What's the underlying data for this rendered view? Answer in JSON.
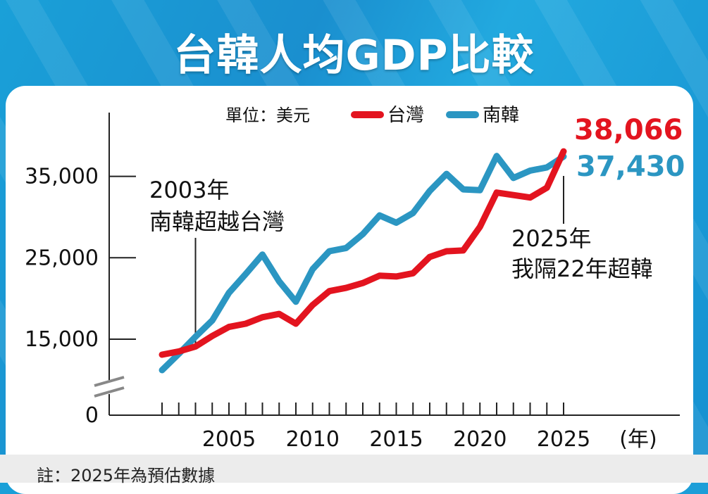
{
  "title": "台韓人均GDP比較",
  "unit_label": "單位：美元",
  "footnote": "註：2025年為預估數據",
  "colors": {
    "taiwan": "#e3141f",
    "korea": "#2b96c2",
    "axis": "#222222",
    "background": "#1a9ad6"
  },
  "annotations": {
    "crossing_year": "2003年",
    "crossing_text": "南韓超越台灣",
    "overtake_year": "2025年",
    "overtake_text": "我隔22年超韓"
  },
  "chart_data": {
    "type": "line",
    "title": "台韓人均GDP比較",
    "xlabel": "(年)",
    "ylabel": "單位：美元",
    "y_ticks": [
      "0",
      "15,000",
      "25,000",
      "35,000"
    ],
    "x_ticks": [
      "2005",
      "2010",
      "2015",
      "2020",
      "2025"
    ],
    "axis_break": true,
    "legend_position": "top",
    "x": [
      2001,
      2002,
      2003,
      2004,
      2005,
      2006,
      2007,
      2008,
      2009,
      2010,
      2011,
      2012,
      2013,
      2014,
      2015,
      2016,
      2017,
      2018,
      2019,
      2020,
      2021,
      2022,
      2023,
      2024,
      2025
    ],
    "series": [
      {
        "name": "台灣",
        "color": "#e3141f",
        "end_label": "38,066",
        "values": [
          13100,
          13500,
          14100,
          15400,
          16500,
          16900,
          17700,
          18100,
          16900,
          19200,
          20900,
          21300,
          21900,
          22800,
          22700,
          23100,
          25100,
          25800,
          25900,
          28800,
          33000,
          32700,
          32400,
          33600,
          38066
        ]
      },
      {
        "name": "南韓",
        "color": "#2b96c2",
        "end_label": "37,430",
        "values": [
          11200,
          13200,
          15300,
          17300,
          20700,
          23000,
          25400,
          22100,
          19600,
          23600,
          25800,
          26200,
          27900,
          30200,
          29300,
          30500,
          33200,
          35300,
          33400,
          33300,
          37500,
          34800,
          35700,
          36100,
          37430
        ]
      }
    ]
  }
}
